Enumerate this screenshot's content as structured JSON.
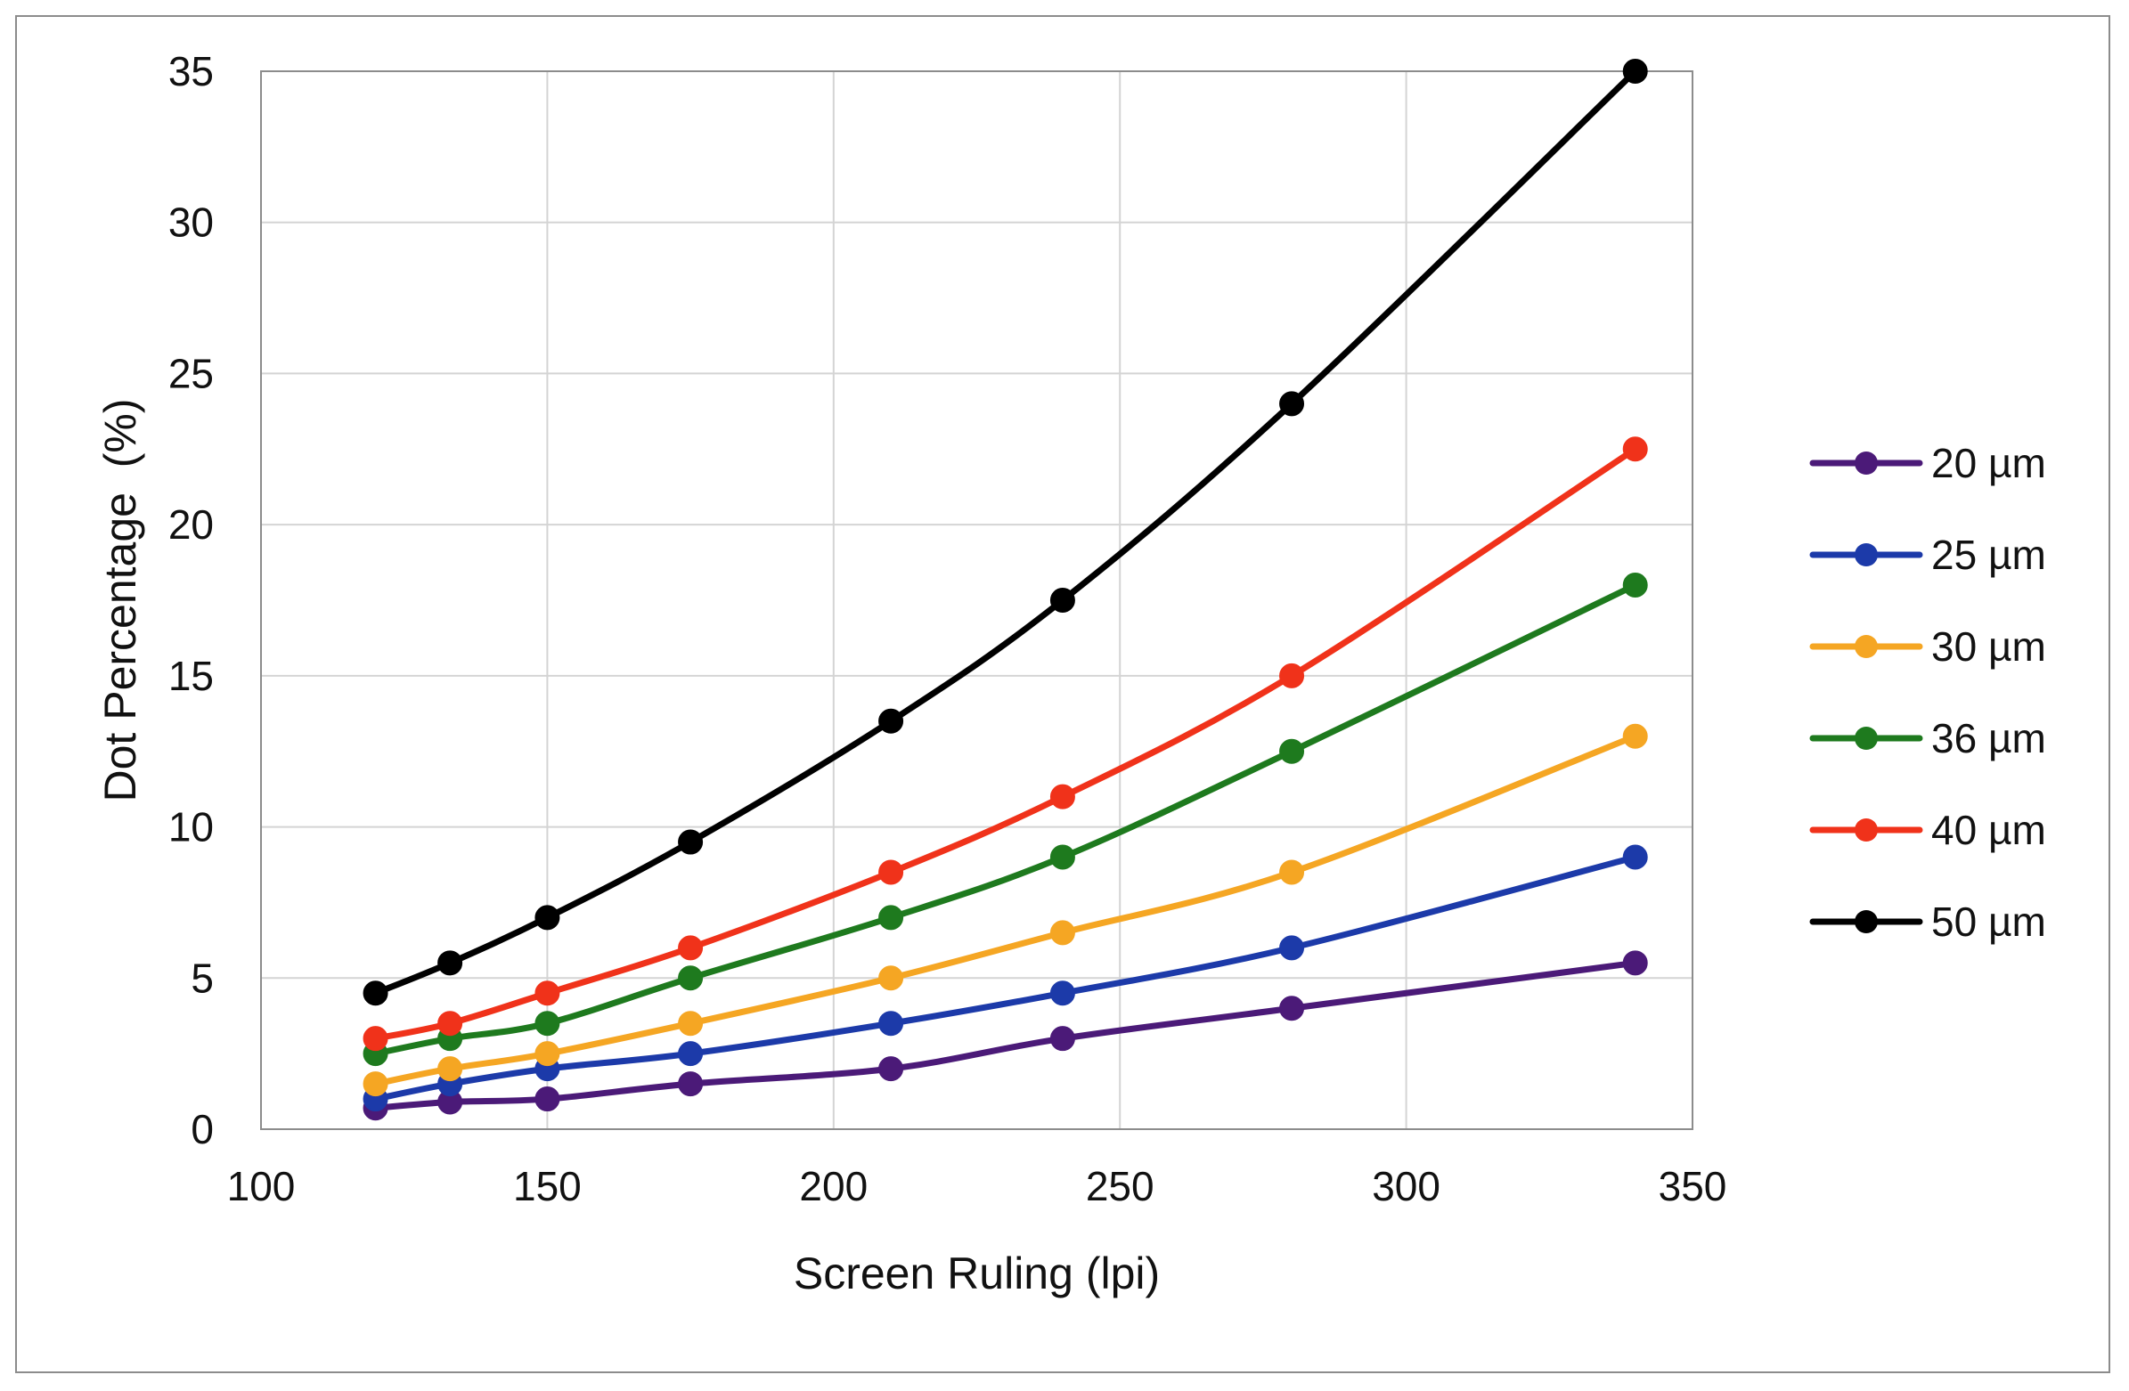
{
  "chart_data": {
    "type": "line",
    "title": "",
    "xlabel": "Screen Ruling (lpi)",
    "ylabel": "Dot Percentage  (%)",
    "xlim": [
      100,
      350
    ],
    "ylim": [
      0,
      35
    ],
    "xticks": [
      "100",
      "150",
      "200",
      "250",
      "300",
      "350"
    ],
    "yticks": [
      "0",
      "5",
      "10",
      "15",
      "20",
      "25",
      "30",
      "35"
    ],
    "grid": true,
    "legend_position": "right",
    "x": [
      120,
      133,
      150,
      175,
      210,
      240,
      280,
      340
    ],
    "series": [
      {
        "name": "20 µm",
        "color": "#4b1a78",
        "values": [
          0.7,
          0.9,
          1.0,
          1.5,
          2.0,
          3.0,
          4.0,
          5.5
        ]
      },
      {
        "name": "25 µm",
        "color": "#1c3aa9",
        "values": [
          1.0,
          1.5,
          2.0,
          2.5,
          3.5,
          4.5,
          6.0,
          9.0
        ]
      },
      {
        "name": "30 µm",
        "color": "#f5a623",
        "values": [
          1.5,
          2.0,
          2.5,
          3.5,
          5.0,
          6.5,
          8.5,
          13.0
        ]
      },
      {
        "name": "36 µm",
        "color": "#1e7a1e",
        "values": [
          2.5,
          3.0,
          3.5,
          5.0,
          7.0,
          9.0,
          12.5,
          18.0
        ]
      },
      {
        "name": "40 µm",
        "color": "#f0321a",
        "values": [
          3.0,
          3.5,
          4.5,
          6.0,
          8.5,
          11.0,
          15.0,
          22.5
        ]
      },
      {
        "name": "50 µm",
        "color": "#000000",
        "values": [
          4.5,
          5.5,
          7.0,
          9.5,
          13.5,
          17.5,
          24.0,
          35.0
        ]
      }
    ]
  }
}
